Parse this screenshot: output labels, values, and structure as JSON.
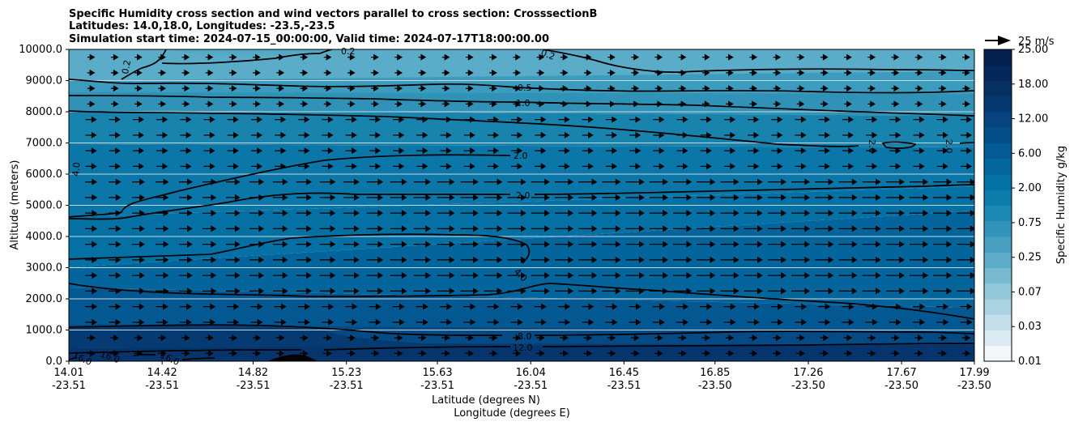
{
  "chart_data": {
    "type": "contourf",
    "title_lines": [
      "Specific Humidity cross section and wind vectors parallel to cross section: CrosssectionB",
      "Latitudes: 14.0,18.0, Longitudes: -23.5,-23.5",
      "Simulation start time: 2024-07-15_00:00:00, Valid time: 2024-07-17T18:00:00.00"
    ],
    "xlabel_lines": [
      "Latitude (degrees N)",
      "Longitude (degrees E)"
    ],
    "ylabel": "Altitude (meters)",
    "x_ticks": [
      {
        "lat": "14.01",
        "lon": "-23.51"
      },
      {
        "lat": "14.42",
        "lon": "-23.51"
      },
      {
        "lat": "14.82",
        "lon": "-23.51"
      },
      {
        "lat": "15.23",
        "lon": "-23.51"
      },
      {
        "lat": "15.63",
        "lon": "-23.51"
      },
      {
        "lat": "16.04",
        "lon": "-23.51"
      },
      {
        "lat": "16.45",
        "lon": "-23.51"
      },
      {
        "lat": "16.85",
        "lon": "-23.50"
      },
      {
        "lat": "17.26",
        "lon": "-23.50"
      },
      {
        "lat": "17.67",
        "lon": "-23.50"
      },
      {
        "lat": "17.99",
        "lon": "-23.50"
      }
    ],
    "y_ticks": [
      "0.0",
      "1000.0",
      "2000.0",
      "3000.0",
      "4000.0",
      "5000.0",
      "6000.0",
      "7000.0",
      "8000.0",
      "9000.0",
      "10000.0"
    ],
    "ylim": [
      0,
      10000
    ],
    "grid": "horizontal",
    "colorbar": {
      "label": "Specific Humidity g/kg",
      "ticks": [
        "0.01",
        "0.03",
        "0.07",
        "0.25",
        "0.75",
        "2.00",
        "6.00",
        "12.00",
        "18.00",
        "25.00"
      ],
      "colormap": "PuBu",
      "low_color": "#f2f7fb",
      "high_color": "#04204f"
    },
    "quiver_key": "25 m/s",
    "contour_levels_labeled": [
      "0.2",
      "0.2",
      "0.2",
      "0.5",
      "1.0",
      "2.0",
      "2.0",
      "2.0",
      "2.0",
      "4.0",
      "4.0",
      "8.0",
      "12.0",
      "16.0",
      "16.0",
      "16.0"
    ],
    "humidity_profile_gkg": [
      {
        "altitude": 0,
        "value": 17
      },
      {
        "altitude": 500,
        "value": 13
      },
      {
        "altitude": 1000,
        "value": 10
      },
      {
        "altitude": 2000,
        "value": 7
      },
      {
        "altitude": 3000,
        "value": 5
      },
      {
        "altitude": 4000,
        "value": 4
      },
      {
        "altitude": 5000,
        "value": 2.5
      },
      {
        "altitude": 6000,
        "value": 2
      },
      {
        "altitude": 7000,
        "value": 1.5
      },
      {
        "altitude": 8000,
        "value": 1
      },
      {
        "altitude": 9000,
        "value": 0.4
      },
      {
        "altitude": 10000,
        "value": 0.2
      }
    ]
  }
}
